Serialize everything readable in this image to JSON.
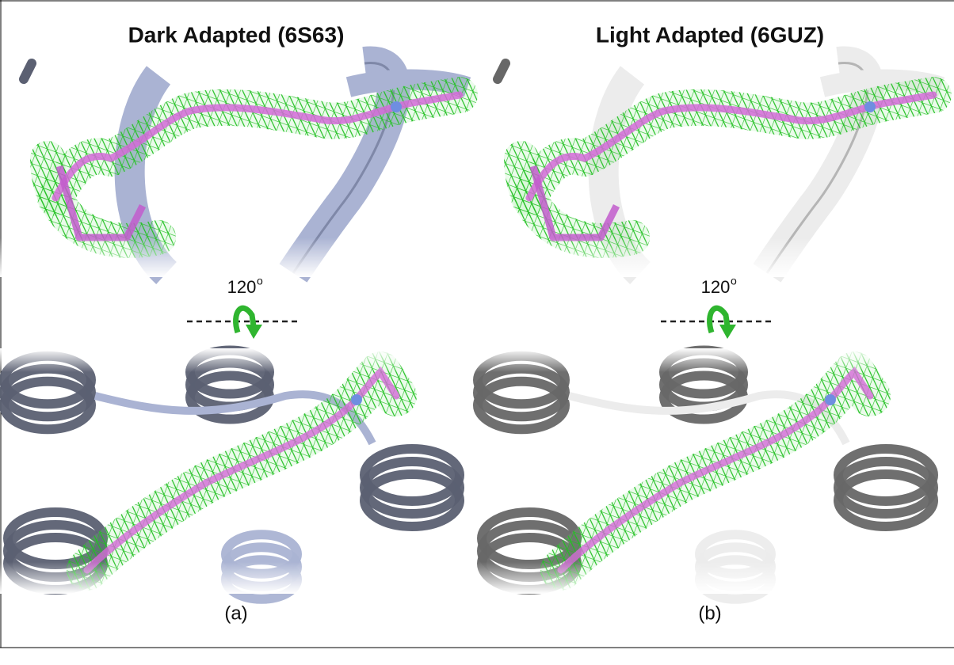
{
  "panels": [
    {
      "title": "Dark Adapted (6S63)",
      "rotation": "120",
      "rotation_unit": "o",
      "label": "(a)"
    },
    {
      "title": "Light Adapted (6GUZ)",
      "rotation": "120",
      "rotation_unit": "o",
      "label": "(b)"
    }
  ]
}
